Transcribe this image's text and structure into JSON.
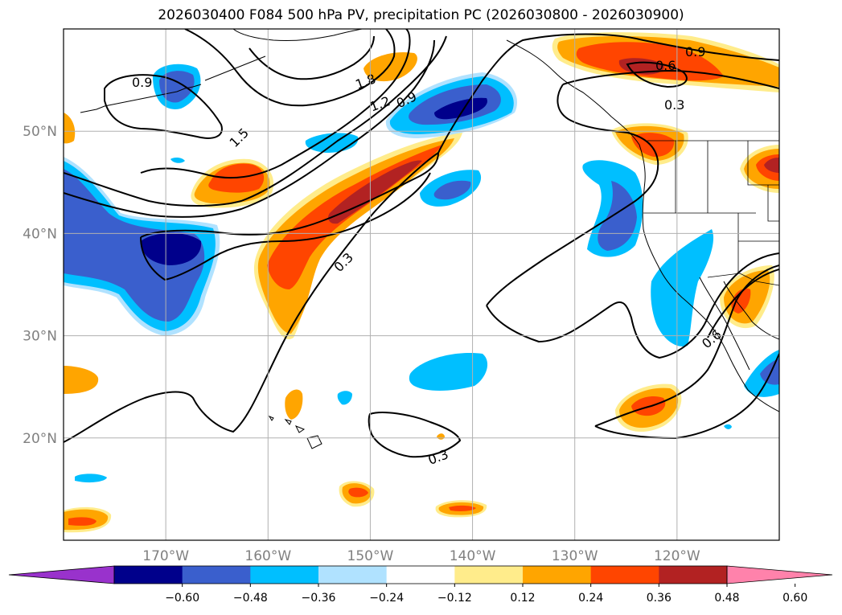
{
  "title": "2026030400 F084 500 hPa PV, precipitation PC (2026030800 - 2026030900)",
  "map": {
    "lon_range": [
      -180,
      -110
    ],
    "lat_range": [
      10,
      60
    ],
    "lat_ticks": [
      {
        "value": 20,
        "label": "20°N"
      },
      {
        "value": 30,
        "label": "30°N"
      },
      {
        "value": 40,
        "label": "40°N"
      },
      {
        "value": 50,
        "label": "50°N"
      }
    ],
    "lon_ticks": [
      {
        "value": -170,
        "label": "170°W"
      },
      {
        "value": -160,
        "label": "160°W"
      },
      {
        "value": -150,
        "label": "150°W"
      },
      {
        "value": -140,
        "label": "140°W"
      },
      {
        "value": -130,
        "label": "130°W"
      },
      {
        "value": -120,
        "label": "120°W"
      }
    ],
    "contour_labels": [
      "0.9",
      "1.8",
      "1.2",
      "0.9",
      "1.5",
      "0.6",
      "0.9",
      "0.3",
      "0.3",
      "0.6",
      "0.3"
    ]
  },
  "colorbar": {
    "labels": [
      "−0.60",
      "−0.48",
      "−0.36",
      "−0.24",
      "−0.12",
      "0.12",
      "0.24",
      "0.36",
      "0.48",
      "0.60"
    ],
    "colors": [
      "#9932cc",
      "#00008b",
      "#3a5fcd",
      "#00bfff",
      "#b0e2ff",
      "#ffffff",
      "#ffec8b",
      "#ffa500",
      "#ff4500",
      "#b22222",
      "#ff82ab"
    ]
  },
  "colors": {
    "c_n060": "#00008b",
    "c_n048": "#3a5fcd",
    "c_n036": "#00bfff",
    "c_n024": "#b0e2ff",
    "c_p024": "#ffec8b",
    "c_p036": "#ffa500",
    "c_p048": "#ff4500",
    "c_p060": "#b22222"
  }
}
